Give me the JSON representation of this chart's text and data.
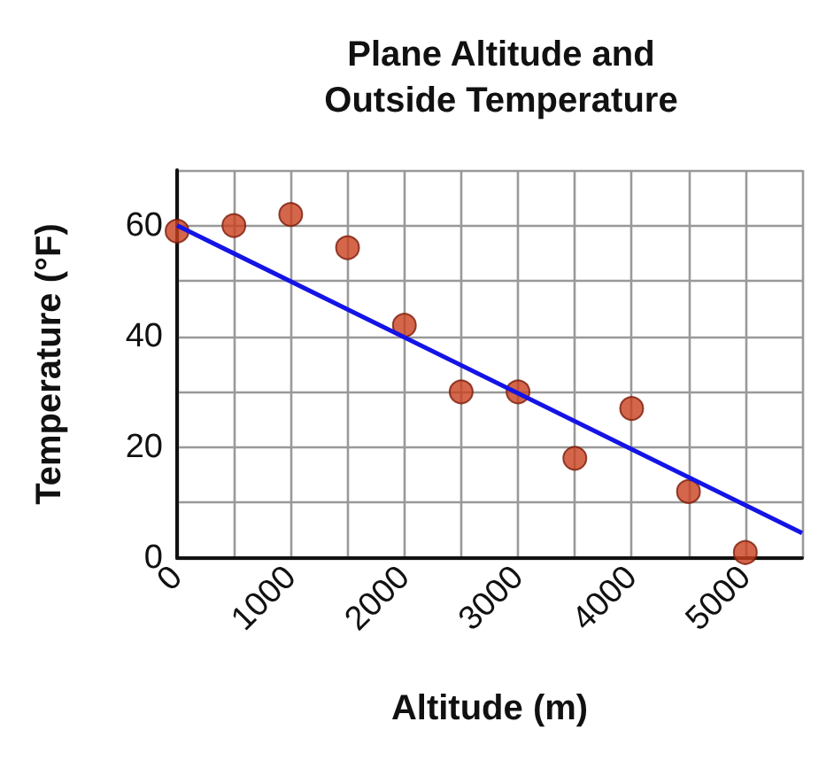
{
  "chart_data": {
    "type": "scatter",
    "title": "Plane Altitude and\nOutside Temperature",
    "xlabel": "Altitude (m)",
    "ylabel": "Temperature (°F)",
    "x": [
      0,
      500,
      1000,
      1500,
      2000,
      2500,
      3000,
      3500,
      4000,
      4500,
      5000
    ],
    "series": [
      {
        "color": "#c8401e",
        "marker": "circle",
        "values": [
          59,
          60,
          62,
          56,
          42,
          30,
          30,
          18,
          27,
          12,
          1
        ]
      },
      {
        "type": "line",
        "color": "#1414e6",
        "marker": "none",
        "line_style": "solid",
        "x": [
          0,
          5500
        ],
        "values": [
          60,
          4.5
        ]
      }
    ],
    "xlim": [
      0,
      5500
    ],
    "xticks": [
      0,
      {
        "value": 500,
        "label": null
      },
      1000,
      {
        "value": 1500,
        "label": null
      },
      2000,
      {
        "value": 2500,
        "label": null
      },
      3000,
      {
        "value": 3500,
        "label": null
      },
      4000,
      {
        "value": 4500,
        "label": null
      },
      5000,
      {
        "value": 5500,
        "label": null
      }
    ],
    "ylim": [
      0,
      70
    ],
    "yticks": [
      0,
      {
        "value": 10,
        "label": null
      },
      20,
      {
        "value": 30,
        "label": null
      },
      40,
      {
        "value": 50,
        "label": null
      },
      60,
      {
        "value": 70,
        "label": null
      }
    ],
    "grid": true
  }
}
